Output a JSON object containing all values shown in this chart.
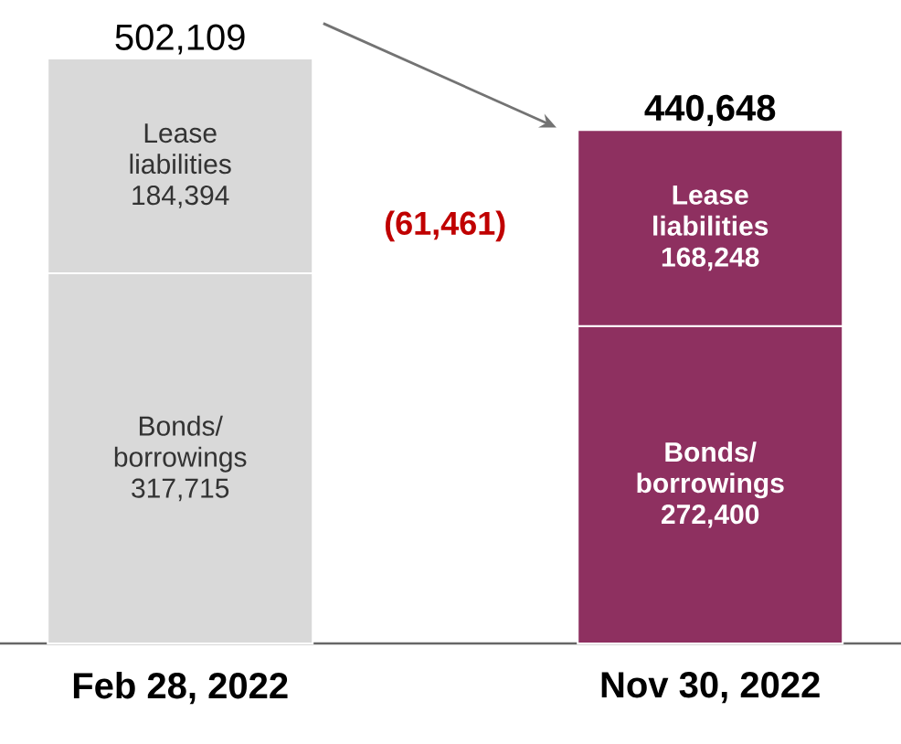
{
  "chart_data": {
    "type": "bar",
    "stacked": true,
    "tick_labels": "x",
    "categories": [
      "Feb 28, 2022",
      "Nov 30, 2022"
    ],
    "series": [
      {
        "name": "Bonds/ borrowings",
        "colors": [
          "#d9d9d9",
          "#8e3060"
        ],
        "values": [
          317715,
          272400
        ],
        "value_labels": [
          "317,715",
          "272,400"
        ]
      },
      {
        "name": "Lease liabilities",
        "colors": [
          "#d9d9d9",
          "#8e3060"
        ],
        "values": [
          184394,
          168248
        ],
        "value_labels": [
          "184,394",
          "168,248"
        ]
      }
    ],
    "totals": [
      "502,109",
      "440,648"
    ],
    "annotations": [
      "(61,461)"
    ]
  }
}
